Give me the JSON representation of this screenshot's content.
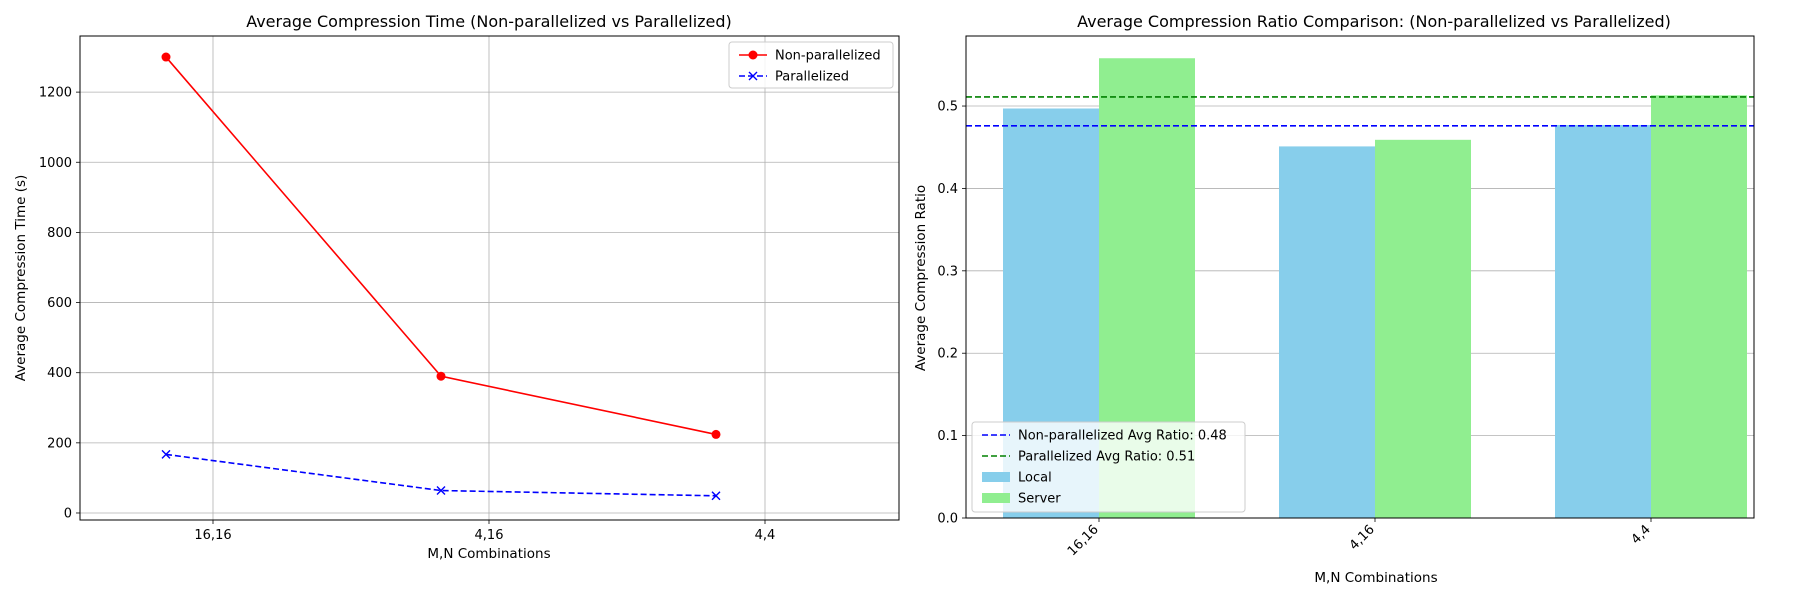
{
  "chart_data": [
    {
      "type": "line",
      "title": "Average Compression Time (Non-parallelized vs Parallelized)",
      "xlabel": "M,N Combinations",
      "ylabel": "Average Compression Time (s)",
      "categories": [
        "16,16",
        "4,16",
        "4,4"
      ],
      "ylim": [
        -20,
        1360
      ],
      "yticks": [
        0,
        200,
        400,
        600,
        800,
        1000,
        1200
      ],
      "grid": true,
      "legend_position": "top-right",
      "series": [
        {
          "name": "Non-parallelized",
          "color": "#ff0000",
          "marker": "circle",
          "linestyle": "solid",
          "values": [
            1300,
            390,
            224
          ]
        },
        {
          "name": "Parallelized",
          "color": "#0000ff",
          "marker": "x",
          "linestyle": "dashed",
          "values": [
            167,
            64,
            49
          ]
        }
      ]
    },
    {
      "type": "bar",
      "title": "Average Compression Ratio Comparison: (Non-parallelized vs Parallelized)",
      "xlabel": "M,N Combinations",
      "ylabel": "Average Compression Ratio",
      "categories": [
        "16,16",
        "4,16",
        "4,4"
      ],
      "ylim": [
        0,
        0.585
      ],
      "yticks": [
        "0.0",
        "0.1",
        "0.2",
        "0.3",
        "0.4",
        "0.5"
      ],
      "grid": true,
      "legend_position": "lower-left",
      "series": [
        {
          "name": "Local",
          "color": "#87ceeb",
          "values": [
            0.497,
            0.451,
            0.477
          ]
        },
        {
          "name": "Server",
          "color": "#90ee90",
          "values": [
            0.558,
            0.459,
            0.513
          ]
        }
      ],
      "reference_lines": [
        {
          "label": "Non-parallelized Avg Ratio: 0.48",
          "value": 0.476,
          "color": "#0000ff",
          "linestyle": "dashed"
        },
        {
          "label": "Parallelized Avg Ratio: 0.51",
          "value": 0.511,
          "color": "#008000",
          "linestyle": "dashed"
        }
      ]
    }
  ]
}
